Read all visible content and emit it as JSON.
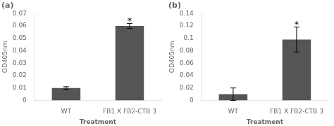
{
  "chart_data": [
    {
      "type": "bar",
      "title": "(a)",
      "categories": [
        "WT",
        "FB1 X FB2-CTB 3"
      ],
      "values": [
        0.01,
        0.06
      ],
      "errors": [
        0.001,
        0.002
      ],
      "color": "#555555",
      "ylim": [
        0,
        0.07
      ],
      "yticks": [
        0,
        0.01,
        0.02,
        0.03,
        0.04,
        0.05,
        0.06,
        0.07
      ],
      "ylabel": "OD405nm",
      "xlabel": "Treatment",
      "annotations": [
        {
          "text": "*",
          "category": "FB1 X FB2-CTB 3"
        }
      ],
      "grid": false
    },
    {
      "type": "bar",
      "title": "(b)",
      "categories": [
        "WT",
        "FB1 X FB2-CTB 3"
      ],
      "values": [
        0.01,
        0.098
      ],
      "errors": [
        0.01,
        0.02
      ],
      "color": "#555555",
      "ylim": [
        0,
        0.14
      ],
      "yticks": [
        0,
        0.02,
        0.04,
        0.06,
        0.08,
        0.1,
        0.12,
        0.14
      ],
      "ylabel": "OD405nm",
      "xlabel": "Treatment",
      "annotations": [
        {
          "text": "*",
          "category": "FB1 X FB2-CTB 3"
        }
      ],
      "grid": false
    }
  ]
}
